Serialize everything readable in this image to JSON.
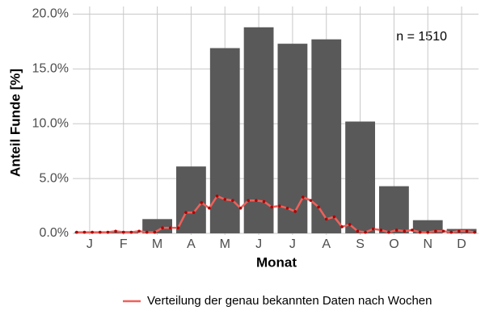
{
  "chart_data": {
    "type": "bar",
    "categories": [
      "J",
      "F",
      "M",
      "A",
      "M",
      "J",
      "J",
      "A",
      "S",
      "O",
      "N",
      "D"
    ],
    "values": [
      0.15,
      0.2,
      1.3,
      6.1,
      16.9,
      18.8,
      17.3,
      17.7,
      10.2,
      4.3,
      1.2,
      0.4
    ],
    "color": "#595959",
    "xlabel": "Monat",
    "ylabel": "Anteil Funde [%]",
    "ylim": [
      -0.15,
      20.7
    ],
    "yticks": [
      {
        "value": 0,
        "label": "0.0%"
      },
      {
        "value": 5,
        "label": "5.0%"
      },
      {
        "value": 10,
        "label": "10.0%"
      },
      {
        "value": 15,
        "label": "15.0%"
      },
      {
        "value": 20,
        "label": "20.0%"
      }
    ],
    "grid": true,
    "annotation": "n = 1510",
    "legend": "bottom",
    "line": {
      "name": "Verteilung der genau bekannten Daten nach Wochen",
      "color": "#f0605a",
      "point_color": "#b00000",
      "xlim": [
        0.5,
        52.5
      ],
      "x": [
        1,
        2,
        3,
        4,
        5,
        6,
        7,
        8,
        9,
        10,
        11,
        12,
        13,
        14,
        15,
        16,
        17,
        18,
        19,
        20,
        21,
        22,
        23,
        24,
        25,
        26,
        27,
        28,
        29,
        30,
        31,
        32,
        33,
        34,
        35,
        36,
        37,
        38,
        39,
        40,
        41,
        42,
        43,
        44,
        45,
        46,
        47,
        48,
        49,
        50,
        51,
        52
      ],
      "values": [
        0.1,
        0.1,
        0.1,
        0.1,
        0.1,
        0.2,
        0.1,
        0.1,
        0.2,
        0.1,
        0.1,
        0.5,
        0.5,
        0.5,
        1.9,
        1.9,
        2.8,
        2.3,
        3.4,
        3.1,
        3.0,
        2.3,
        3.0,
        3.0,
        2.9,
        2.4,
        2.5,
        2.3,
        2.0,
        3.3,
        3.0,
        2.4,
        1.3,
        1.5,
        0.6,
        0.8,
        0.2,
        0.1,
        0.4,
        0.3,
        0.1,
        0.3,
        0.2,
        0.3,
        0.1,
        0.1,
        0.2,
        0.2,
        0.1,
        0.2,
        0.2,
        0.1
      ]
    }
  }
}
